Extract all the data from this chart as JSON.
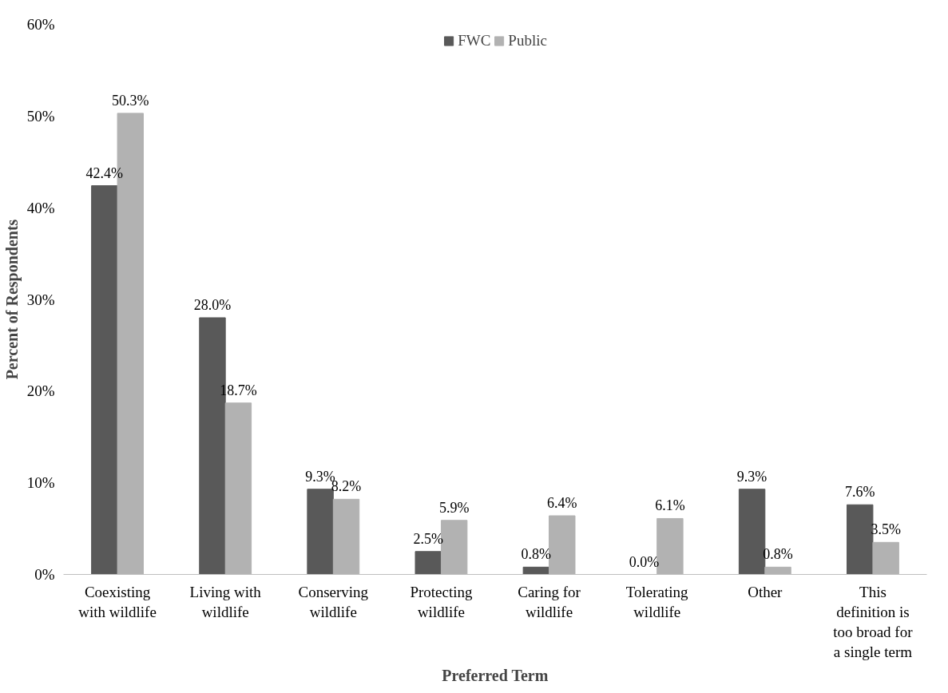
{
  "chart_data": {
    "type": "bar",
    "xlabel": "Preferred Term",
    "ylabel": "Percent of Respondents",
    "categories": [
      "Coexisting with wildlife",
      "Living with wildlife",
      "Conserving wildlife",
      "Protecting wildlife",
      "Caring for wildlife",
      "Tolerating wildlife",
      "Other",
      "This definition is too broad for a single term"
    ],
    "series": [
      {
        "name": "FWC",
        "color": "#595959",
        "values": [
          42.4,
          28.0,
          9.3,
          2.5,
          0.8,
          0.0,
          9.3,
          7.6
        ],
        "value_labels": [
          "42.4%",
          "28.0%",
          "9.3%",
          "2.5%",
          "0.8%",
          "0.0%",
          "9.3%",
          "7.6%"
        ]
      },
      {
        "name": "Public",
        "color": "#b2b2b2",
        "values": [
          50.3,
          18.7,
          8.2,
          5.9,
          6.4,
          6.1,
          0.8,
          3.5
        ],
        "value_labels": [
          "50.3%",
          "18.7%",
          "8.2%",
          "5.9%",
          "6.4%",
          "6.1%",
          "0.8%",
          "3.5%"
        ]
      }
    ],
    "ylim": [
      0,
      60
    ],
    "yticks": [
      {
        "value": 0,
        "label": "0%"
      },
      {
        "value": 10,
        "label": "10%"
      },
      {
        "value": 20,
        "label": "20%"
      },
      {
        "value": 30,
        "label": "30%"
      },
      {
        "value": 40,
        "label": "40%"
      },
      {
        "value": 50,
        "label": "50%"
      },
      {
        "value": 60,
        "label": "60%"
      }
    ],
    "grid": false,
    "legend": "top"
  }
}
